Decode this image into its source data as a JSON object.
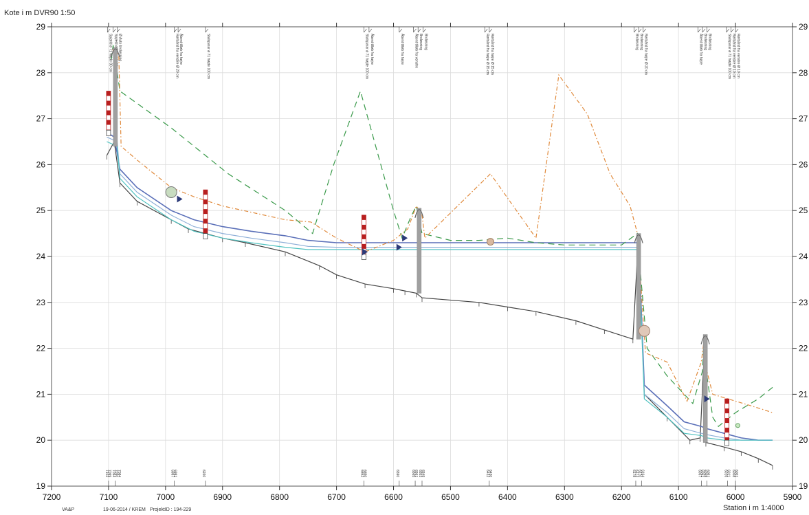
{
  "header": {
    "ylabel": "Kote i m DVR90 1:50"
  },
  "footer": {
    "company": "VA&P",
    "date_author": "19-06-2014 / KREM",
    "project": "ProjektID : 194-229",
    "xlabel": "Station i m 1:4000"
  },
  "chart_data": {
    "type": "line",
    "title": "",
    "ylabel": "Kote i m DVR90 1:50",
    "xlabel": "Station i m 1:4000",
    "xlim": [
      7200,
      5900
    ],
    "ylim": [
      19,
      29
    ],
    "x_reversed": true,
    "xticks": [
      7200,
      7100,
      7000,
      6900,
      6800,
      6700,
      6600,
      6500,
      6400,
      6300,
      6200,
      6100,
      6000,
      5900
    ],
    "yticks": [
      19,
      20,
      21,
      22,
      23,
      24,
      25,
      26,
      27,
      28,
      29
    ],
    "colors": {
      "bottom": "#444444",
      "water_blue": "#5a6fb8",
      "water_light": "#8fb0d8",
      "water_cyan": "#4fc2c0",
      "terrain_dashed": "#3a9a4a",
      "bank_dashdot": "#e08a3c",
      "marker_red": "#b81e1e",
      "structure_grey": "#a0a0a0"
    },
    "series": [
      {
        "key": "bottom",
        "points": [
          [
            7103,
            26.2
          ],
          [
            7090,
            26.5
          ],
          [
            7080,
            25.6
          ],
          [
            7050,
            25.2
          ],
          [
            6990,
            24.8
          ],
          [
            6960,
            24.6
          ],
          [
            6900,
            24.4
          ],
          [
            6860,
            24.3
          ],
          [
            6790,
            24.1
          ],
          [
            6730,
            23.8
          ],
          [
            6700,
            23.6
          ],
          [
            6650,
            23.4
          ],
          [
            6600,
            23.3
          ],
          [
            6580,
            23.25
          ],
          [
            6560,
            23.2
          ],
          [
            6550,
            23.1
          ],
          [
            6450,
            23.0
          ],
          [
            6400,
            22.9
          ],
          [
            6350,
            22.8
          ],
          [
            6280,
            22.6
          ],
          [
            6230,
            22.4
          ],
          [
            6180,
            22.2
          ],
          [
            6170,
            24.5
          ],
          [
            6160,
            21.0
          ],
          [
            6120,
            20.5
          ],
          [
            6080,
            20.0
          ],
          [
            6062,
            20.05
          ],
          [
            6055,
            21.9
          ],
          [
            6052,
            19.95
          ],
          [
            6020,
            19.85
          ],
          [
            5990,
            19.75
          ],
          [
            5960,
            19.6
          ],
          [
            5935,
            19.45
          ]
        ]
      },
      {
        "key": "water_blue",
        "points": [
          [
            7103,
            26.7
          ],
          [
            7090,
            26.6
          ],
          [
            7080,
            25.9
          ],
          [
            7050,
            25.5
          ],
          [
            6990,
            25.0
          ],
          [
            6950,
            24.8
          ],
          [
            6900,
            24.65
          ],
          [
            6850,
            24.55
          ],
          [
            6790,
            24.45
          ],
          [
            6750,
            24.35
          ],
          [
            6700,
            24.3
          ],
          [
            6650,
            24.3
          ],
          [
            6600,
            24.3
          ],
          [
            6555,
            24.3
          ],
          [
            6450,
            24.3
          ],
          [
            6350,
            24.3
          ],
          [
            6250,
            24.3
          ],
          [
            6180,
            24.3
          ],
          [
            6170,
            24.3
          ],
          [
            6160,
            21.2
          ],
          [
            6120,
            20.75
          ],
          [
            6090,
            20.4
          ],
          [
            6060,
            20.3
          ],
          [
            6050,
            20.25
          ],
          [
            6020,
            20.15
          ],
          [
            5990,
            20.05
          ],
          [
            5960,
            20.0
          ],
          [
            5935,
            20.0
          ]
        ]
      },
      {
        "key": "water_light",
        "points": [
          [
            7103,
            26.6
          ],
          [
            7085,
            26.5
          ],
          [
            7080,
            25.8
          ],
          [
            7050,
            25.4
          ],
          [
            6990,
            24.9
          ],
          [
            6950,
            24.65
          ],
          [
            6900,
            24.5
          ],
          [
            6850,
            24.4
          ],
          [
            6790,
            24.3
          ],
          [
            6750,
            24.22
          ],
          [
            6700,
            24.2
          ],
          [
            6650,
            24.2
          ],
          [
            6600,
            24.2
          ],
          [
            6555,
            24.2
          ],
          [
            6450,
            24.2
          ],
          [
            6350,
            24.2
          ],
          [
            6250,
            24.2
          ],
          [
            6180,
            24.2
          ],
          [
            6170,
            24.2
          ],
          [
            6160,
            21.0
          ],
          [
            6120,
            20.6
          ],
          [
            6090,
            20.25
          ],
          [
            6060,
            20.15
          ],
          [
            6050,
            20.12
          ],
          [
            6020,
            20.05
          ],
          [
            5990,
            20.0
          ],
          [
            5960,
            20.0
          ],
          [
            5935,
            20.0
          ]
        ]
      },
      {
        "key": "water_cyan",
        "points": [
          [
            7103,
            26.5
          ],
          [
            7085,
            26.4
          ],
          [
            7080,
            25.7
          ],
          [
            7050,
            25.3
          ],
          [
            6990,
            24.8
          ],
          [
            6950,
            24.55
          ],
          [
            6900,
            24.4
          ],
          [
            6850,
            24.3
          ],
          [
            6790,
            24.2
          ],
          [
            6750,
            24.15
          ],
          [
            6700,
            24.15
          ],
          [
            6650,
            24.15
          ],
          [
            6600,
            24.15
          ],
          [
            6555,
            24.15
          ],
          [
            6450,
            24.15
          ],
          [
            6350,
            24.15
          ],
          [
            6250,
            24.15
          ],
          [
            6180,
            24.15
          ],
          [
            6170,
            24.15
          ],
          [
            6160,
            20.9
          ],
          [
            6120,
            20.5
          ],
          [
            6090,
            20.15
          ],
          [
            6060,
            20.1
          ],
          [
            6050,
            20.05
          ],
          [
            6020,
            20.0
          ],
          [
            5990,
            20.0
          ],
          [
            5960,
            20.0
          ],
          [
            5935,
            20.0
          ]
        ]
      },
      {
        "key": "terrain_dashed",
        "dash": "9,6",
        "points": [
          [
            7095,
            28.3
          ],
          [
            7092,
            28.6
          ],
          [
            7080,
            27.6
          ],
          [
            6990,
            26.8
          ],
          [
            6890,
            25.8
          ],
          [
            6790,
            25.0
          ],
          [
            6742,
            24.5
          ],
          [
            6705,
            26.0
          ],
          [
            6658,
            27.6
          ],
          [
            6600,
            25.0
          ],
          [
            6585,
            24.4
          ],
          [
            6570,
            24.85
          ],
          [
            6560,
            25.1
          ],
          [
            6550,
            24.5
          ],
          [
            6500,
            24.35
          ],
          [
            6450,
            24.35
          ],
          [
            6400,
            24.4
          ],
          [
            6350,
            24.3
          ],
          [
            6300,
            24.25
          ],
          [
            6250,
            24.25
          ],
          [
            6200,
            24.25
          ],
          [
            6172,
            24.5
          ],
          [
            6168,
            23.8
          ],
          [
            6155,
            22.0
          ],
          [
            6120,
            21.4
          ],
          [
            6075,
            20.8
          ],
          [
            6058,
            21.5
          ],
          [
            6055,
            22.3
          ],
          [
            6050,
            21.4
          ],
          [
            6040,
            20.5
          ],
          [
            6030,
            20.3
          ],
          [
            6000,
            20.6
          ],
          [
            5960,
            20.9
          ],
          [
            5935,
            21.15
          ]
        ]
      },
      {
        "key": "bank_dashdot",
        "dash": "6,3,1.5,3",
        "points": [
          [
            7093,
            28.5
          ],
          [
            7082,
            28.4
          ],
          [
            7078,
            26.4
          ],
          [
            7050,
            26.1
          ],
          [
            6990,
            25.5
          ],
          [
            6950,
            25.3
          ],
          [
            6900,
            25.1
          ],
          [
            6790,
            24.8
          ],
          [
            6745,
            24.75
          ],
          [
            6700,
            24.4
          ],
          [
            6650,
            24.1
          ],
          [
            6600,
            24.35
          ],
          [
            6575,
            24.6
          ],
          [
            6560,
            25.1
          ],
          [
            6550,
            24.9
          ],
          [
            6545,
            24.4
          ],
          [
            6430,
            25.8
          ],
          [
            6350,
            24.4
          ],
          [
            6310,
            27.95
          ],
          [
            6260,
            27.1
          ],
          [
            6220,
            25.8
          ],
          [
            6185,
            25.1
          ],
          [
            6172,
            24.5
          ],
          [
            6158,
            21.9
          ],
          [
            6120,
            21.7
          ],
          [
            6085,
            20.85
          ],
          [
            6060,
            21.7
          ],
          [
            6055,
            22.2
          ],
          [
            6050,
            21.5
          ],
          [
            6040,
            21.0
          ],
          [
            6000,
            20.85
          ],
          [
            5960,
            20.7
          ],
          [
            5935,
            20.6
          ]
        ]
      }
    ],
    "red_markers": [
      {
        "x": 7100,
        "y_bottom": 26.75,
        "y_top": 27.6
      },
      {
        "x": 6930,
        "y_bottom": 24.5,
        "y_top": 25.45
      },
      {
        "x": 6652,
        "y_bottom": 24.05,
        "y_top": 24.9
      },
      {
        "x": 6015,
        "y_bottom": 20.0,
        "y_top": 20.9
      }
    ],
    "grey_structures": [
      {
        "x": 7088,
        "y_bottom": 26.4,
        "y_top": 28.55
      },
      {
        "x": 6555,
        "y_bottom": 23.2,
        "y_top": 25.05
      },
      {
        "x": 6170,
        "y_bottom": 22.2,
        "y_top": 24.5
      },
      {
        "x": 6053,
        "y_bottom": 19.95,
        "y_top": 22.3
      }
    ],
    "blue_triangles": [
      [
        6975,
        25.25
      ],
      [
        6650,
        24.1
      ],
      [
        6590,
        24.2
      ],
      [
        6580,
        24.4
      ],
      [
        6050,
        20.9
      ]
    ],
    "circles": [
      {
        "x": 6990,
        "y": 25.4,
        "r": 8,
        "fill": "#c8dcc0",
        "stroke": "#777777"
      },
      {
        "x": 6430,
        "y": 24.32,
        "r": 5,
        "fill": "#d8b8a0",
        "stroke": "#a08060"
      },
      {
        "x": 6160,
        "y": 22.38,
        "r": 8,
        "fill": "#e0c8b8",
        "stroke": "#a08070"
      },
      {
        "x": 5996,
        "y": 20.32,
        "r": 3,
        "fill": "#c8e8c0",
        "stroke": "#60a060"
      }
    ],
    "annotations": [
      {
        "x": 7102,
        "text": "Spjæld ø 71 højde 80 cm",
        "top": 29.0
      },
      {
        "x": 7092,
        "text": "Spjæld ø 71 højde 80 cm",
        "top": 29.0
      },
      {
        "x": 7085,
        "text": "Ø Auto broløsning",
        "top": 29.0
      },
      {
        "x": 6985,
        "text": "Rørbånd fra venstre Ø 20 cm",
        "top": 29.0
      },
      {
        "x": 6978,
        "text": "Åbent tilløb fra højre",
        "top": 29.0
      },
      {
        "x": 6930,
        "text": "Stalsparar ø 71 højde 100 cm",
        "top": 29.0
      },
      {
        "x": 6652,
        "text": "Stalsparar ø 71 højde 100 cm",
        "top": 29.0
      },
      {
        "x": 6643,
        "text": "Åbent tilløb fra højre",
        "top": 29.0
      },
      {
        "x": 6590,
        "text": "Åbent tilløb fra højre",
        "top": 29.0
      },
      {
        "x": 6565,
        "text": "Åbent tilløb fra venstre",
        "top": 29.0
      },
      {
        "x": 6557,
        "text": "Broløsning",
        "top": 29.0
      },
      {
        "x": 6548,
        "text": "Broløsning",
        "top": 29.0
      },
      {
        "x": 6440,
        "text": "Rørbånd fra højre Ø 15 cm",
        "top": 29.0
      },
      {
        "x": 6432,
        "text": "Rørbånd fra højre Ø 15 cm",
        "top": 29.0
      },
      {
        "x": 6178,
        "text": "Broløsning",
        "top": 29.0
      },
      {
        "x": 6170,
        "text": "Broløsning",
        "top": 29.0
      },
      {
        "x": 6162,
        "text": "Rørbånd fra højre Ø 20 cm",
        "top": 29.0
      },
      {
        "x": 6066,
        "text": "Åbent tilløb fra højre",
        "top": 29.0
      },
      {
        "x": 6058,
        "text": "Broløsning",
        "top": 29.0
      },
      {
        "x": 6050,
        "text": "Broløsning",
        "top": 29.0
      },
      {
        "x": 6016,
        "text": "Stalsparar ø 71 højde 100 cm",
        "top": 29.0
      },
      {
        "x": 6008,
        "text": "Rørbånd fra venstre Ø 10 cm",
        "top": 29.0
      },
      {
        "x": 6000,
        "text": "Rørbånd fra venstre Ø 10 cm",
        "top": 29.0
      }
    ],
    "bottom_labels": [
      {
        "x": 7100,
        "lines": [
          "7102",
          "7099"
        ]
      },
      {
        "x": 7088,
        "lines": [
          "7094",
          "7090",
          "7084"
        ]
      },
      {
        "x": 6985,
        "lines": [
          "6987",
          "6981"
        ]
      },
      {
        "x": 6930,
        "lines": [
          "6930"
        ]
      },
      {
        "x": 6652,
        "lines": [
          "6652",
          "6650"
        ]
      },
      {
        "x": 6590,
        "lines": [
          "6590"
        ]
      },
      {
        "x": 6562,
        "lines": [
          "6565",
          "6561"
        ]
      },
      {
        "x": 6550,
        "lines": [
          "6553",
          "6549"
        ]
      },
      {
        "x": 6432,
        "lines": [
          "6432",
          "6430"
        ]
      },
      {
        "x": 6175,
        "lines": [
          "6178",
          "6173"
        ]
      },
      {
        "x": 6165,
        "lines": [
          "6170",
          "6164"
        ]
      },
      {
        "x": 6060,
        "lines": [
          "6067",
          "6061"
        ]
      },
      {
        "x": 6050,
        "lines": [
          "6058",
          "6051"
        ]
      },
      {
        "x": 6014,
        "lines": [
          "6016",
          "6011"
        ]
      },
      {
        "x": 6000,
        "lines": [
          "6008",
          "6001"
        ]
      }
    ]
  }
}
